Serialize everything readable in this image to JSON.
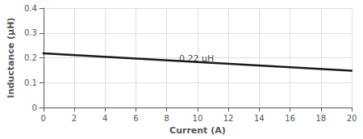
{
  "chart_data": {
    "type": "line",
    "x": [
      0,
      20
    ],
    "values": [
      0.218,
      0.148
    ],
    "color": "#1a1a1a",
    "xlabel": "Current (A)",
    "ylabel": "Inductance (μH)",
    "xlim": [
      0,
      20
    ],
    "xticks": [
      0,
      2,
      4,
      6,
      8,
      10,
      12,
      14,
      16,
      18,
      20
    ],
    "ylim": [
      0,
      0.4
    ],
    "yticks": [
      0,
      0.1,
      0.2,
      0.3,
      0.4
    ],
    "grid": true,
    "annotations": [
      {
        "text": "0.22 μH",
        "x": 8.8,
        "y": 0.198
      }
    ]
  }
}
